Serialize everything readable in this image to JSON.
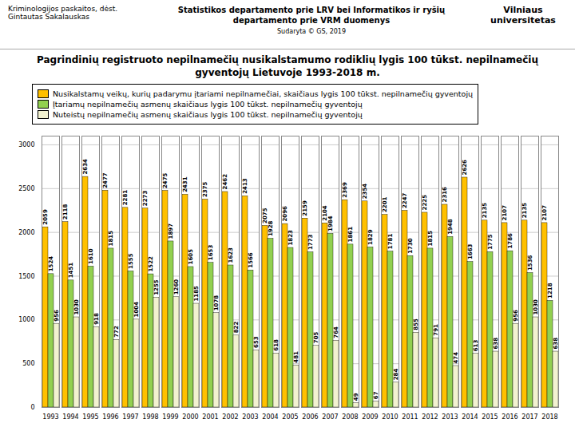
{
  "chart_data": {
    "type": "bar",
    "title": "Pagrindinių registruoto nepilnamečių nusikalstamumo rodiklių lygis 100 tūkst. nepilnamečių\ngyventojų Lietuvoje 1993-2018 m.",
    "annotations": [
      "Kriminologijos paskaitos, dėst. Gintautas Sakalauskas",
      "Statistikos departamento prie LRV bei Informatikos ir ryšių\ndepartamento prie VRM duomenys",
      "Sudaryta © GS, 2019",
      "Vilniaus\nuniversitetas"
    ],
    "categories": [
      "1993",
      "1994",
      "1995",
      "1996",
      "1997",
      "1998",
      "1999",
      "2000",
      "2001",
      "2002",
      "2003",
      "2004",
      "2005",
      "2006",
      "2007",
      "2008",
      "2009",
      "2010",
      "2011",
      "2012",
      "2013",
      "2014",
      "2015",
      "2016",
      "2017",
      "2018"
    ],
    "series": [
      {
        "name": "Nusikalstamų veikų, kurių padarymu įtariami nepilnamečiai, skaičiaus lygis 100 tūkst. nepilnamečių gyventojų",
        "color": "#FFC000",
        "values": [
          2059,
          2118,
          2634,
          2477,
          2281,
          2273,
          2475,
          2431,
          2375,
          2462,
          2413,
          2075,
          2096,
          2159,
          2104,
          2369,
          2354,
          2201,
          2247,
          2225,
          2316,
          2626,
          2135,
          2107,
          2135,
          2107
        ]
      },
      {
        "name": "Įtariamų nepilnamečių asmenų skaičiaus lygis 100 tūkst. nepilnamečių gyventojų",
        "color": "#92D050",
        "values": [
          1524,
          1451,
          1610,
          1815,
          1555,
          1522,
          1897,
          1605,
          1653,
          1623,
          1566,
          1928,
          1823,
          1773,
          1984,
          1861,
          1829,
          1781,
          1730,
          1815,
          1948,
          1663,
          1775,
          1786,
          1536,
          1218
        ]
      },
      {
        "name": "Nuteistų nepilnamečių asmenų skaičiaus lygis 100 tūkst. nepilnamečių gyventojų",
        "color": "#F2F2D0",
        "values": [
          956,
          1030,
          918,
          772,
          1004,
          1255,
          1260,
          1185,
          1078,
          822,
          653,
          618,
          481,
          705,
          764,
          49,
          67,
          284,
          855,
          791,
          474,
          613,
          638,
          956,
          1030,
          638
        ]
      }
    ],
    "ylim": [
      0,
      3100
    ],
    "yticks": [
      0,
      500,
      1000,
      1500,
      2000,
      2500,
      3000
    ],
    "grid": true,
    "legend": "upper left",
    "data_labels": true
  }
}
